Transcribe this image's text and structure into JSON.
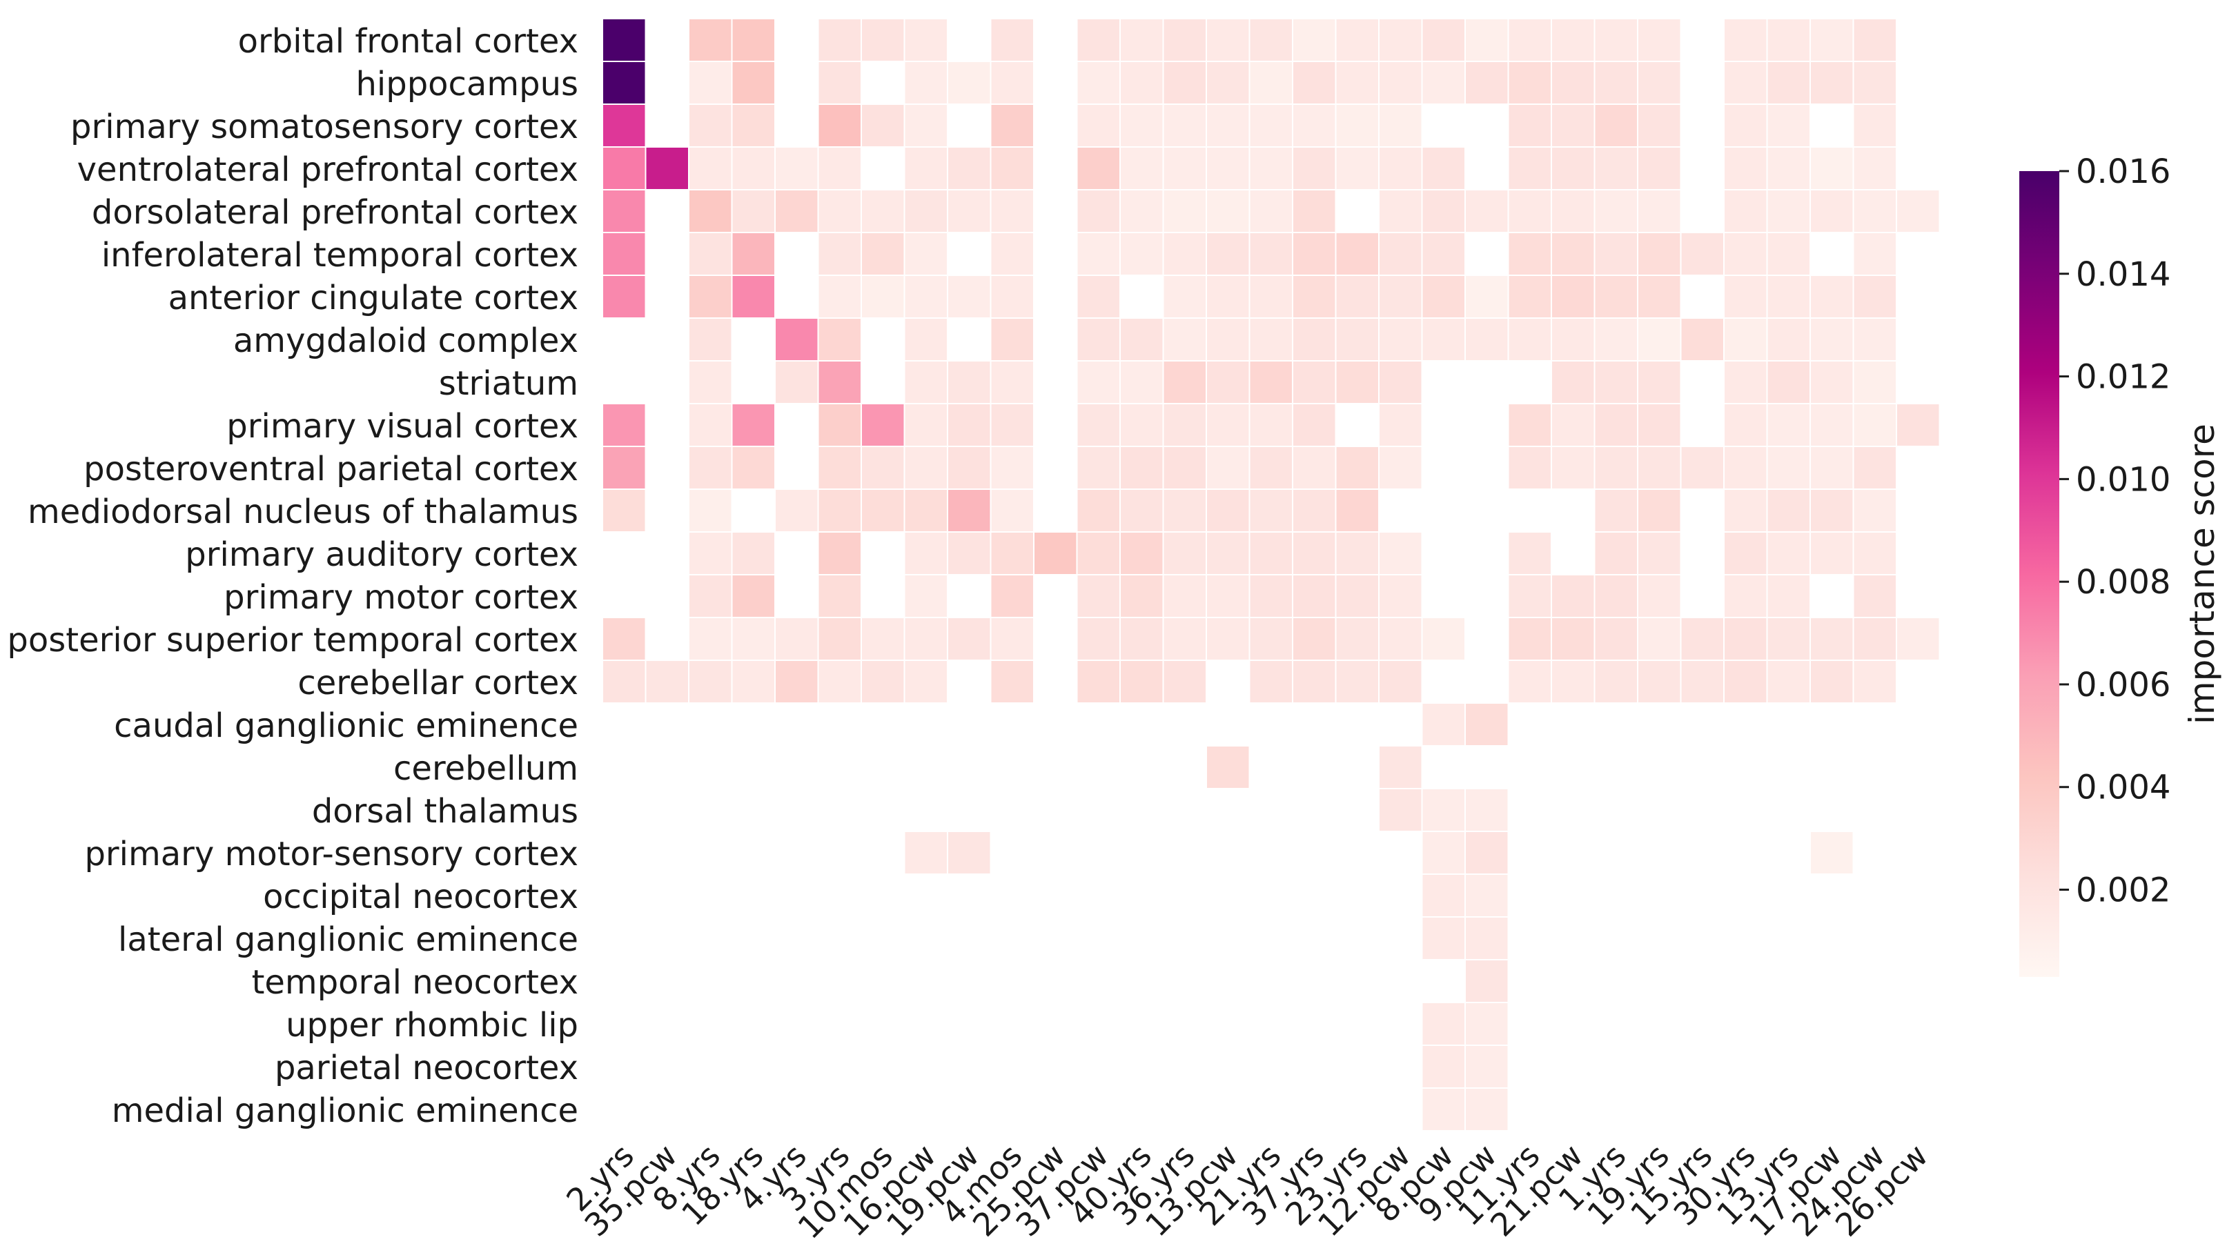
{
  "chart_data": {
    "type": "heatmap",
    "title": "",
    "xlabel": "",
    "ylabel": "",
    "colorbar": {
      "label": "importance score",
      "range": [
        0.0003,
        0.016
      ],
      "ticks": [
        "0.002",
        "0.004",
        "0.006",
        "0.008",
        "0.010",
        "0.012",
        "0.014",
        "0.016"
      ],
      "tick_values": [
        0.002,
        0.004,
        0.006,
        0.008,
        0.01,
        0.012,
        0.014,
        0.016
      ],
      "colormap": "RdPu",
      "stops": [
        "#fff7f3",
        "#fde0dd",
        "#fcc5c0",
        "#fa9fb5",
        "#f768a1",
        "#dd3497",
        "#ae017e",
        "#7a0177",
        "#49006a"
      ]
    },
    "x": [
      "2.yrs",
      "35.pcw",
      "8.yrs",
      "18.yrs",
      "4.yrs",
      "3.yrs",
      "10.mos",
      "16.pcw",
      "19.pcw",
      "4.mos",
      "25.pcw",
      "37.pcw",
      "40.yrs",
      "36.yrs",
      "13.pcw",
      "21.yrs",
      "37.yrs",
      "23.yrs",
      "12.pcw",
      "8.pcw",
      "9.pcw",
      "11.yrs",
      "21.pcw",
      "1.yrs",
      "19.yrs",
      "15.yrs",
      "30.yrs",
      "13.yrs",
      "17.pcw",
      "24.pcw",
      "26.pcw"
    ],
    "y": [
      "orbital frontal cortex",
      "hippocampus",
      "primary somatosensory cortex",
      "ventrolateral prefrontal cortex",
      "dorsolateral prefrontal cortex",
      "inferolateral temporal cortex",
      "anterior cingulate cortex",
      "amygdaloid complex",
      "striatum",
      "primary visual cortex",
      "posteroventral parietal cortex",
      "mediodorsal nucleus of thalamus",
      "primary auditory cortex",
      "primary motor cortex",
      "posterior superior temporal cortex",
      "cerebellar cortex",
      "caudal ganglionic eminence",
      "cerebellum",
      "dorsal thalamus",
      "primary motor-sensory cortex",
      "occipital neocortex",
      "lateral ganglionic eminence",
      "temporal neocortex",
      "upper rhombic lip",
      "parietal neocortex",
      "medial ganglionic eminence"
    ],
    "values": [
      [
        0.0159,
        null,
        0.0038,
        0.004,
        null,
        0.002,
        0.002,
        0.0015,
        null,
        0.002,
        null,
        0.002,
        0.0015,
        0.002,
        0.0015,
        0.0018,
        0.001,
        0.0015,
        0.0015,
        0.002,
        0.001,
        0.0015,
        0.0015,
        0.0015,
        0.0015,
        null,
        0.0015,
        0.0015,
        0.0012,
        0.002,
        null
      ],
      [
        0.0159,
        null,
        0.0012,
        0.004,
        null,
        0.002,
        null,
        0.0012,
        0.001,
        0.0015,
        null,
        0.0012,
        0.0015,
        0.0022,
        0.0018,
        0.001,
        0.0022,
        0.0015,
        0.0015,
        0.0012,
        0.0022,
        0.0025,
        0.0022,
        0.002,
        0.0018,
        null,
        0.0015,
        0.002,
        0.002,
        0.0018,
        null
      ],
      [
        0.01,
        null,
        0.002,
        0.0025,
        null,
        0.0045,
        0.0022,
        0.0012,
        null,
        0.0035,
        null,
        0.0015,
        0.0012,
        0.0012,
        0.0012,
        0.0012,
        0.0012,
        0.001,
        0.001,
        null,
        null,
        0.0022,
        0.002,
        0.0028,
        0.002,
        null,
        0.0015,
        0.0012,
        null,
        0.0015,
        null
      ],
      [
        0.0075,
        0.011,
        0.0015,
        0.0015,
        0.0012,
        0.0015,
        null,
        0.0015,
        0.002,
        0.0025,
        null,
        0.0035,
        0.0012,
        0.0012,
        0.0012,
        0.0012,
        0.002,
        0.0012,
        0.0015,
        0.002,
        null,
        0.002,
        0.002,
        0.0018,
        0.002,
        null,
        0.0015,
        0.0012,
        0.0008,
        0.0012,
        null
      ],
      [
        0.007,
        null,
        0.004,
        0.002,
        0.003,
        0.0015,
        0.0015,
        0.0018,
        0.0015,
        0.0015,
        null,
        0.002,
        0.0012,
        0.001,
        0.001,
        0.0012,
        0.0025,
        null,
        0.0015,
        0.002,
        0.0015,
        0.0015,
        0.0015,
        0.0012,
        0.0012,
        null,
        0.0015,
        0.0012,
        0.0015,
        0.0012,
        0.0012
      ],
      [
        0.007,
        null,
        0.002,
        0.005,
        null,
        0.0018,
        0.0025,
        0.0012,
        null,
        0.0015,
        null,
        0.0012,
        0.0012,
        0.0015,
        0.002,
        0.002,
        0.0028,
        0.003,
        0.002,
        0.002,
        null,
        0.0025,
        0.0025,
        0.002,
        0.0025,
        0.002,
        0.0015,
        0.0015,
        null,
        0.0012,
        null
      ],
      [
        0.007,
        null,
        0.0035,
        0.007,
        null,
        0.0012,
        0.001,
        0.0012,
        0.0012,
        0.0015,
        null,
        0.002,
        null,
        0.0012,
        0.0015,
        0.0015,
        0.0025,
        0.002,
        0.0018,
        0.0025,
        0.0008,
        0.0025,
        0.0028,
        0.0025,
        0.0025,
        null,
        0.0015,
        0.0015,
        0.0015,
        0.002,
        null
      ],
      [
        null,
        null,
        0.002,
        null,
        0.007,
        0.003,
        null,
        0.0015,
        null,
        0.0025,
        null,
        0.002,
        0.002,
        0.0012,
        0.0015,
        0.0015,
        0.002,
        0.0018,
        0.0015,
        0.0015,
        0.0015,
        0.0015,
        0.0015,
        0.0012,
        0.0008,
        0.0025,
        0.001,
        0.0015,
        0.0012,
        0.0012,
        null
      ],
      [
        null,
        null,
        0.0015,
        null,
        0.002,
        0.006,
        null,
        0.0015,
        0.0018,
        0.0015,
        null,
        0.0012,
        0.0012,
        0.003,
        0.0022,
        0.003,
        0.0022,
        0.0025,
        0.0022,
        null,
        null,
        null,
        0.0022,
        0.002,
        0.002,
        null,
        0.0015,
        0.0022,
        0.0015,
        0.001,
        null
      ],
      [
        0.0065,
        null,
        0.0015,
        0.0065,
        null,
        0.0035,
        0.0065,
        0.0015,
        0.0022,
        0.002,
        null,
        0.0018,
        0.0015,
        0.0018,
        0.0015,
        0.0015,
        0.0022,
        null,
        0.0015,
        null,
        null,
        0.0025,
        0.0015,
        0.0022,
        0.0022,
        null,
        0.0015,
        0.0012,
        0.0012,
        0.001,
        0.0022
      ],
      [
        0.006,
        null,
        0.002,
        0.0028,
        null,
        0.0025,
        0.002,
        0.0015,
        0.0022,
        0.0012,
        null,
        0.0018,
        0.0022,
        0.0022,
        0.0012,
        0.002,
        0.0015,
        0.0025,
        0.0012,
        null,
        null,
        0.002,
        0.0015,
        0.0018,
        0.0018,
        0.0018,
        0.0015,
        0.0012,
        0.0012,
        0.002,
        null
      ],
      [
        0.0025,
        null,
        0.001,
        null,
        0.0015,
        0.0025,
        0.0025,
        0.0025,
        0.005,
        0.0012,
        null,
        0.0025,
        0.002,
        0.0018,
        0.0022,
        0.0018,
        0.002,
        0.003,
        null,
        null,
        null,
        null,
        null,
        0.002,
        0.0025,
        null,
        0.0015,
        0.002,
        0.002,
        0.0012,
        null
      ],
      [
        null,
        null,
        0.0015,
        0.002,
        null,
        0.0035,
        null,
        0.0015,
        0.002,
        0.0025,
        0.004,
        0.0025,
        0.003,
        0.0018,
        0.0018,
        0.002,
        0.002,
        0.0018,
        0.0012,
        null,
        null,
        0.0018,
        null,
        0.0022,
        0.0018,
        null,
        0.002,
        0.0015,
        0.0015,
        0.0015,
        null
      ],
      [
        null,
        null,
        0.002,
        0.0035,
        null,
        0.0025,
        null,
        0.0012,
        null,
        0.003,
        null,
        0.002,
        0.0025,
        0.0015,
        0.0015,
        0.002,
        0.0022,
        0.002,
        0.0015,
        null,
        null,
        0.0018,
        0.0022,
        0.0022,
        0.0015,
        null,
        0.0015,
        0.0015,
        null,
        0.002,
        null
      ],
      [
        0.003,
        null,
        0.0012,
        0.0012,
        0.0015,
        0.0025,
        0.0015,
        0.0015,
        0.002,
        0.0015,
        null,
        0.002,
        0.002,
        0.0015,
        0.0015,
        0.0018,
        0.0025,
        0.0018,
        0.0015,
        0.001,
        null,
        0.0025,
        0.0025,
        0.0022,
        0.0012,
        0.002,
        0.0022,
        0.0018,
        0.0018,
        0.002,
        0.0012
      ],
      [
        0.002,
        0.0018,
        0.0018,
        0.0015,
        0.003,
        0.0015,
        0.002,
        0.0015,
        null,
        0.0025,
        null,
        0.0025,
        0.0025,
        0.0022,
        null,
        0.002,
        0.002,
        0.0018,
        0.002,
        null,
        null,
        0.0015,
        0.0015,
        0.0018,
        0.0018,
        0.0018,
        0.0022,
        0.0015,
        0.002,
        0.0015,
        null
      ],
      [
        null,
        null,
        null,
        null,
        null,
        null,
        null,
        null,
        null,
        null,
        null,
        null,
        null,
        null,
        null,
        null,
        null,
        null,
        null,
        0.0015,
        0.0025,
        null,
        null,
        null,
        null,
        null,
        null,
        null,
        null,
        null,
        null
      ],
      [
        null,
        null,
        null,
        null,
        null,
        null,
        null,
        null,
        null,
        null,
        null,
        null,
        null,
        null,
        0.0025,
        null,
        null,
        null,
        0.0018,
        null,
        null,
        null,
        null,
        null,
        null,
        null,
        null,
        null,
        null,
        null,
        null
      ],
      [
        null,
        null,
        null,
        null,
        null,
        null,
        null,
        null,
        null,
        null,
        null,
        null,
        null,
        null,
        null,
        null,
        null,
        null,
        0.0018,
        0.0012,
        0.0012,
        null,
        null,
        null,
        null,
        null,
        null,
        null,
        null,
        null,
        null
      ],
      [
        null,
        null,
        null,
        null,
        null,
        null,
        null,
        0.0015,
        0.0018,
        null,
        null,
        null,
        null,
        null,
        null,
        null,
        null,
        null,
        null,
        0.0012,
        0.002,
        null,
        null,
        null,
        null,
        null,
        null,
        null,
        0.0008,
        null,
        null
      ],
      [
        null,
        null,
        null,
        null,
        null,
        null,
        null,
        null,
        null,
        null,
        null,
        null,
        null,
        null,
        null,
        null,
        null,
        null,
        null,
        0.0015,
        0.0012,
        null,
        null,
        null,
        null,
        null,
        null,
        null,
        null,
        null,
        null
      ],
      [
        null,
        null,
        null,
        null,
        null,
        null,
        null,
        null,
        null,
        null,
        null,
        null,
        null,
        null,
        null,
        null,
        null,
        null,
        null,
        0.0015,
        0.0015,
        null,
        null,
        null,
        null,
        null,
        null,
        null,
        null,
        null,
        null
      ],
      [
        null,
        null,
        null,
        null,
        null,
        null,
        null,
        null,
        null,
        null,
        null,
        null,
        null,
        null,
        null,
        null,
        null,
        null,
        null,
        null,
        0.0018,
        null,
        null,
        null,
        null,
        null,
        null,
        null,
        null,
        null,
        null
      ],
      [
        null,
        null,
        null,
        null,
        null,
        null,
        null,
        null,
        null,
        null,
        null,
        null,
        null,
        null,
        null,
        null,
        null,
        null,
        null,
        0.0015,
        0.0012,
        null,
        null,
        null,
        null,
        null,
        null,
        null,
        null,
        null,
        null
      ],
      [
        null,
        null,
        null,
        null,
        null,
        null,
        null,
        null,
        null,
        null,
        null,
        null,
        null,
        null,
        null,
        null,
        null,
        null,
        null,
        0.0015,
        0.0012,
        null,
        null,
        null,
        null,
        null,
        null,
        null,
        null,
        null,
        null
      ],
      [
        null,
        null,
        null,
        null,
        null,
        null,
        null,
        null,
        null,
        null,
        null,
        null,
        null,
        null,
        null,
        null,
        null,
        null,
        null,
        0.0012,
        0.0012,
        null,
        null,
        null,
        null,
        null,
        null,
        null,
        null,
        null,
        null
      ]
    ]
  }
}
